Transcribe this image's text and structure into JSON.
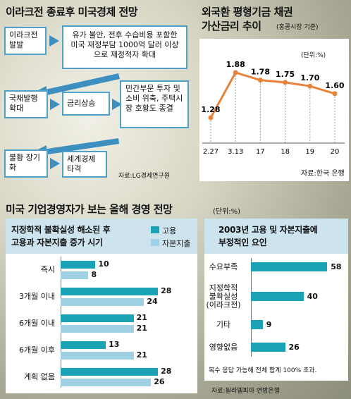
{
  "flow": {
    "title": "이라크전 종료후 미국경제 전망",
    "b1": "이라크전 발발",
    "b2": "유가 불안, 전후 수습비용 포함한 미국 재정부담 1000억 달러 이상으로 재정적자 확대",
    "b3": "국채발행 확대",
    "b4": "금리상승",
    "b5": "민간부문 투자 및 소비 위축, 주택시장 호황도 종결",
    "b6": "불황 장기화",
    "b7": "세계경제 타격",
    "source": "자료:LG경제연구원"
  },
  "bond": {
    "title_line1": "외국환 평형기금 채권",
    "title_line2": "가산금리 추이",
    "title_note": "(홍콩시장 기준)",
    "unit": "(단위:%)",
    "source": "자료:한국 은행"
  },
  "survey": {
    "title": "미국 기업경영자가 보는 올해 경영 전망",
    "unit": "(단위:%)",
    "left_title_line1": "지정학적 불확실성 해소된 후",
    "left_title_line2": "고용과 자본지출 증가 시기",
    "right_title_line1": "2003년 고용 및 자본지출에",
    "right_title_line2": "부정적인 요인",
    "note": "복수 응답 가능해 전체 합계 100% 초과.",
    "source": "자료:필라델피아 연방은행"
  },
  "chart_data": [
    {
      "type": "line",
      "title": "외국환 평형기금 채권 가산금리 추이",
      "categories": [
        "2.27",
        "3.13",
        "17",
        "18",
        "19",
        "20"
      ],
      "series": [
        {
          "values": [
            1.28,
            1.88,
            1.78,
            1.75,
            1.7,
            1.6
          ]
        }
      ],
      "value_labels": [
        "1.28",
        "1.88",
        "1.78",
        "1.75",
        "1.70",
        "1.60"
      ],
      "ylabel": "(단위:%)",
      "color": "#e8823a"
    },
    {
      "type": "bar",
      "title": "지정학적 불확실성 해소된 후 고용과 자본지출 증가 시기",
      "orientation": "horizontal",
      "categories": [
        "즉시",
        "3개월 이내",
        "6개월 이내",
        "6개월 이후",
        "계획 없음"
      ],
      "series": [
        {
          "name": "고용",
          "values": [
            10,
            28,
            21,
            13,
            28
          ],
          "color": "#1aa3b4"
        },
        {
          "name": "자본지출",
          "values": [
            8,
            24,
            21,
            21,
            26
          ],
          "color": "#9fd0e4"
        }
      ],
      "xlim": [
        0,
        30
      ]
    },
    {
      "type": "bar",
      "title": "2003년 고용 및 자본지출에 부정적인 요인",
      "orientation": "horizontal",
      "categories": [
        "수요부족",
        "지정학적 불확실성 (이라크전)",
        "기타",
        "영향없음"
      ],
      "category_lines": [
        [
          "수요부족"
        ],
        [
          "지정학적",
          "불확실성",
          "(이라크전)"
        ],
        [
          "기타"
        ],
        [
          "영향없음"
        ]
      ],
      "values": [
        58,
        40,
        9,
        26
      ],
      "color": "#1aa3b4",
      "xlim": [
        0,
        60
      ]
    }
  ]
}
